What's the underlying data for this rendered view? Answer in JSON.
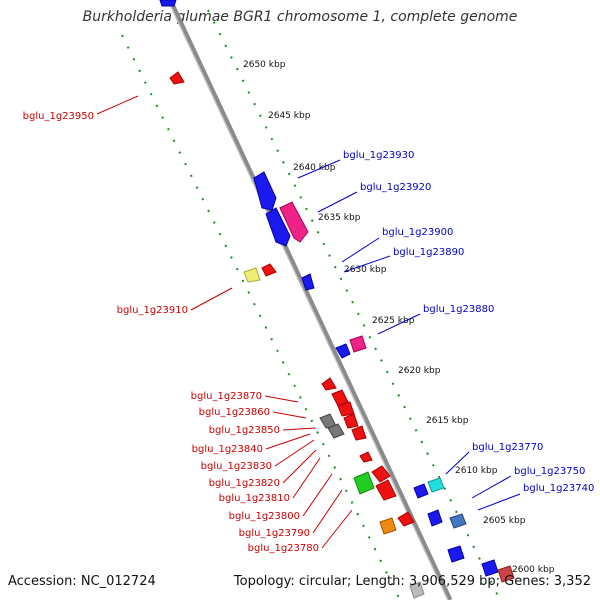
{
  "title": "Burkholderia glumae BGR1 chromosome 1, complete genome",
  "footer": {
    "accession": "Accession: NC_012724",
    "summary": "Topology: circular; Length: 3,906,529 bp; Genes: 3,352"
  },
  "colors": {
    "backbone": "#8a8a8a",
    "tick": "#228b22",
    "forward_label": "#0000cc",
    "reverse_label": "#cc0000"
  },
  "scale": {
    "unit": "kbp",
    "ticks": [
      {
        "label": "2650 kbp"
      },
      {
        "label": "2645 kbp"
      },
      {
        "label": "2640 kbp"
      },
      {
        "label": "2635 kbp"
      },
      {
        "label": "2630 kbp"
      },
      {
        "label": "2625 kbp"
      },
      {
        "label": "2620 kbp"
      },
      {
        "label": "2615 kbp"
      },
      {
        "label": "2610 kbp"
      },
      {
        "label": "2605 kbp"
      },
      {
        "label": "2600 kbp"
      }
    ]
  },
  "forward_genes": [
    {
      "label": "bglu_1g23930"
    },
    {
      "label": "bglu_1g23920"
    },
    {
      "label": "bglu_1g23900"
    },
    {
      "label": "bglu_1g23890"
    },
    {
      "label": "bglu_1g23880"
    },
    {
      "label": "bglu_1g23770"
    },
    {
      "label": "bglu_1g23750"
    },
    {
      "label": "bglu_1g23740"
    }
  ],
  "reverse_genes": [
    {
      "label": "bglu_1g23950"
    },
    {
      "label": "bglu_1g23910"
    },
    {
      "label": "bglu_1g23870"
    },
    {
      "label": "bglu_1g23860"
    },
    {
      "label": "bglu_1g23850"
    },
    {
      "label": "bglu_1g23840"
    },
    {
      "label": "bglu_1g23830"
    },
    {
      "label": "bglu_1g23820"
    },
    {
      "label": "bglu_1g23810"
    },
    {
      "label": "bglu_1g23800"
    },
    {
      "label": "bglu_1g23790"
    },
    {
      "label": "bglu_1g23780"
    }
  ]
}
